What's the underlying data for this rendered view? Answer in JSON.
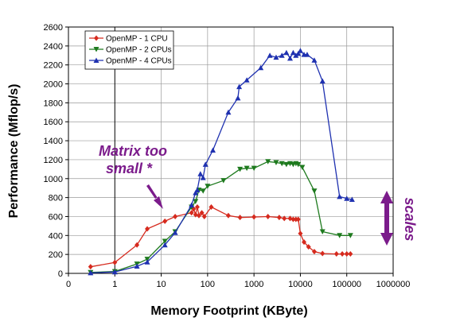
{
  "chart_data": {
    "type": "line",
    "xscale": "log",
    "xlabel": "Memory Footprint (KByte)",
    "ylabel": "Performance (Mflop/s)",
    "xlim": [
      0,
      1000000
    ],
    "ylim": [
      0,
      2600
    ],
    "x_ticks": [
      "0",
      "1",
      "10",
      "100",
      "1000",
      "10000",
      "100000",
      "1000000"
    ],
    "y_ticks": [
      "0",
      "200",
      "400",
      "600",
      "800",
      "1000",
      "1200",
      "1400",
      "1600",
      "1800",
      "2000",
      "2200",
      "2400",
      "2600"
    ],
    "grid": "vertical at decades, horizontal at every 200",
    "legend_position": "top-left",
    "series": [
      {
        "name": "OpenMP - 1 CPU",
        "color": "#d62a1e",
        "marker": "diamond",
        "points": [
          [
            0.3,
            70
          ],
          [
            1,
            115
          ],
          [
            3,
            300
          ],
          [
            5,
            470
          ],
          [
            12,
            550
          ],
          [
            20,
            600
          ],
          [
            45,
            640
          ],
          [
            50,
            680
          ],
          [
            55,
            620
          ],
          [
            60,
            700
          ],
          [
            65,
            610
          ],
          [
            75,
            640
          ],
          [
            85,
            600
          ],
          [
            120,
            700
          ],
          [
            280,
            610
          ],
          [
            500,
            590
          ],
          [
            1000,
            595
          ],
          [
            2000,
            600
          ],
          [
            3500,
            590
          ],
          [
            4500,
            580
          ],
          [
            6000,
            580
          ],
          [
            7000,
            570
          ],
          [
            8000,
            570
          ],
          [
            9000,
            570
          ],
          [
            10000,
            420
          ],
          [
            12000,
            330
          ],
          [
            15000,
            280
          ],
          [
            20000,
            230
          ],
          [
            30000,
            210
          ],
          [
            60000,
            205
          ],
          [
            80000,
            205
          ],
          [
            100000,
            205
          ],
          [
            120000,
            205
          ]
        ]
      },
      {
        "name": "OpenMP - 2 CPUs",
        "color": "#1e7a1e",
        "marker": "triangle-down",
        "points": [
          [
            0.3,
            10
          ],
          [
            1,
            20
          ],
          [
            3,
            100
          ],
          [
            5,
            150
          ],
          [
            12,
            340
          ],
          [
            20,
            440
          ],
          [
            45,
            700
          ],
          [
            55,
            760
          ],
          [
            65,
            880
          ],
          [
            80,
            870
          ],
          [
            100,
            920
          ],
          [
            220,
            980
          ],
          [
            500,
            1100
          ],
          [
            700,
            1110
          ],
          [
            1000,
            1110
          ],
          [
            2000,
            1180
          ],
          [
            3000,
            1170
          ],
          [
            4000,
            1160
          ],
          [
            5000,
            1150
          ],
          [
            6000,
            1160
          ],
          [
            7000,
            1150
          ],
          [
            8000,
            1160
          ],
          [
            9000,
            1150
          ],
          [
            11000,
            1120
          ],
          [
            20000,
            870
          ],
          [
            30000,
            440
          ],
          [
            70000,
            400
          ],
          [
            120000,
            400
          ]
        ]
      },
      {
        "name": "OpenMP - 4 CPUs",
        "color": "#1f31b0",
        "marker": "triangle-up",
        "points": [
          [
            0.3,
            5
          ],
          [
            1,
            15
          ],
          [
            3,
            75
          ],
          [
            5,
            120
          ],
          [
            12,
            300
          ],
          [
            20,
            430
          ],
          [
            45,
            720
          ],
          [
            55,
            850
          ],
          [
            60,
            880
          ],
          [
            70,
            1050
          ],
          [
            80,
            1010
          ],
          [
            90,
            1150
          ],
          [
            130,
            1300
          ],
          [
            280,
            1700
          ],
          [
            450,
            1850
          ],
          [
            480,
            1970
          ],
          [
            700,
            2040
          ],
          [
            1400,
            2170
          ],
          [
            2200,
            2300
          ],
          [
            3000,
            2280
          ],
          [
            4000,
            2300
          ],
          [
            5000,
            2330
          ],
          [
            6000,
            2270
          ],
          [
            7000,
            2330
          ],
          [
            8000,
            2300
          ],
          [
            9000,
            2320
          ],
          [
            10000,
            2350
          ],
          [
            12000,
            2310
          ],
          [
            14000,
            2310
          ],
          [
            20000,
            2250
          ],
          [
            30000,
            2030
          ],
          [
            70000,
            810
          ],
          [
            100000,
            790
          ],
          [
            130000,
            780
          ]
        ]
      }
    ],
    "annotations": [
      {
        "text": "Matrix too",
        "color": "#7b1b8b"
      },
      {
        "text": "small *",
        "color": "#7b1b8b"
      },
      {
        "text": "scales",
        "color": "#7b1b8b"
      }
    ]
  }
}
